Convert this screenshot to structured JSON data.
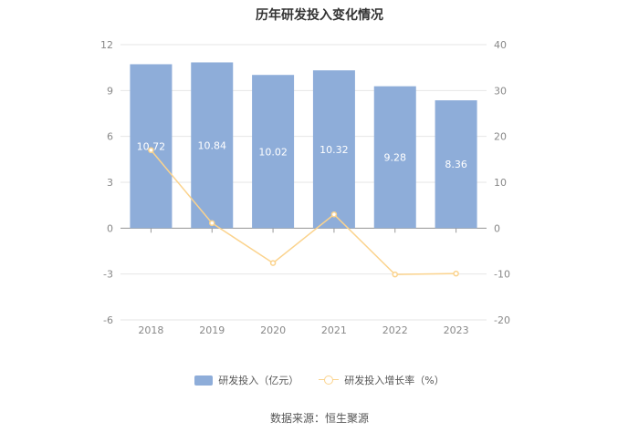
{
  "chart_data": {
    "type": "bar",
    "title": "历年研发投入变化情况",
    "categories": [
      "2018",
      "2019",
      "2020",
      "2021",
      "2022",
      "2023"
    ],
    "series": [
      {
        "name": "研发投入（亿元）",
        "type": "bar",
        "axis": "left",
        "color": "#8eadd9",
        "values": [
          10.72,
          10.84,
          10.02,
          10.32,
          9.28,
          8.36
        ],
        "labels": [
          "10.72",
          "10.84",
          "10.02",
          "10.32",
          "9.28",
          "8.36"
        ]
      },
      {
        "name": "研发投入增长率（%）",
        "type": "line",
        "axis": "right",
        "color": "#fbd38d",
        "values": [
          17.0,
          1.1,
          -7.6,
          3.0,
          -10.1,
          -9.9
        ]
      }
    ],
    "y_left": {
      "min": -6,
      "max": 12,
      "ticks": [
        "12",
        "9",
        "6",
        "3",
        "0",
        "-3",
        "-6"
      ]
    },
    "y_right": {
      "min": -20,
      "max": 40,
      "ticks": [
        "40",
        "30",
        "20",
        "10",
        "0",
        "-10",
        "-20"
      ]
    },
    "grid": true,
    "legend": "bottom"
  },
  "source": "数据来源：恒生聚源"
}
